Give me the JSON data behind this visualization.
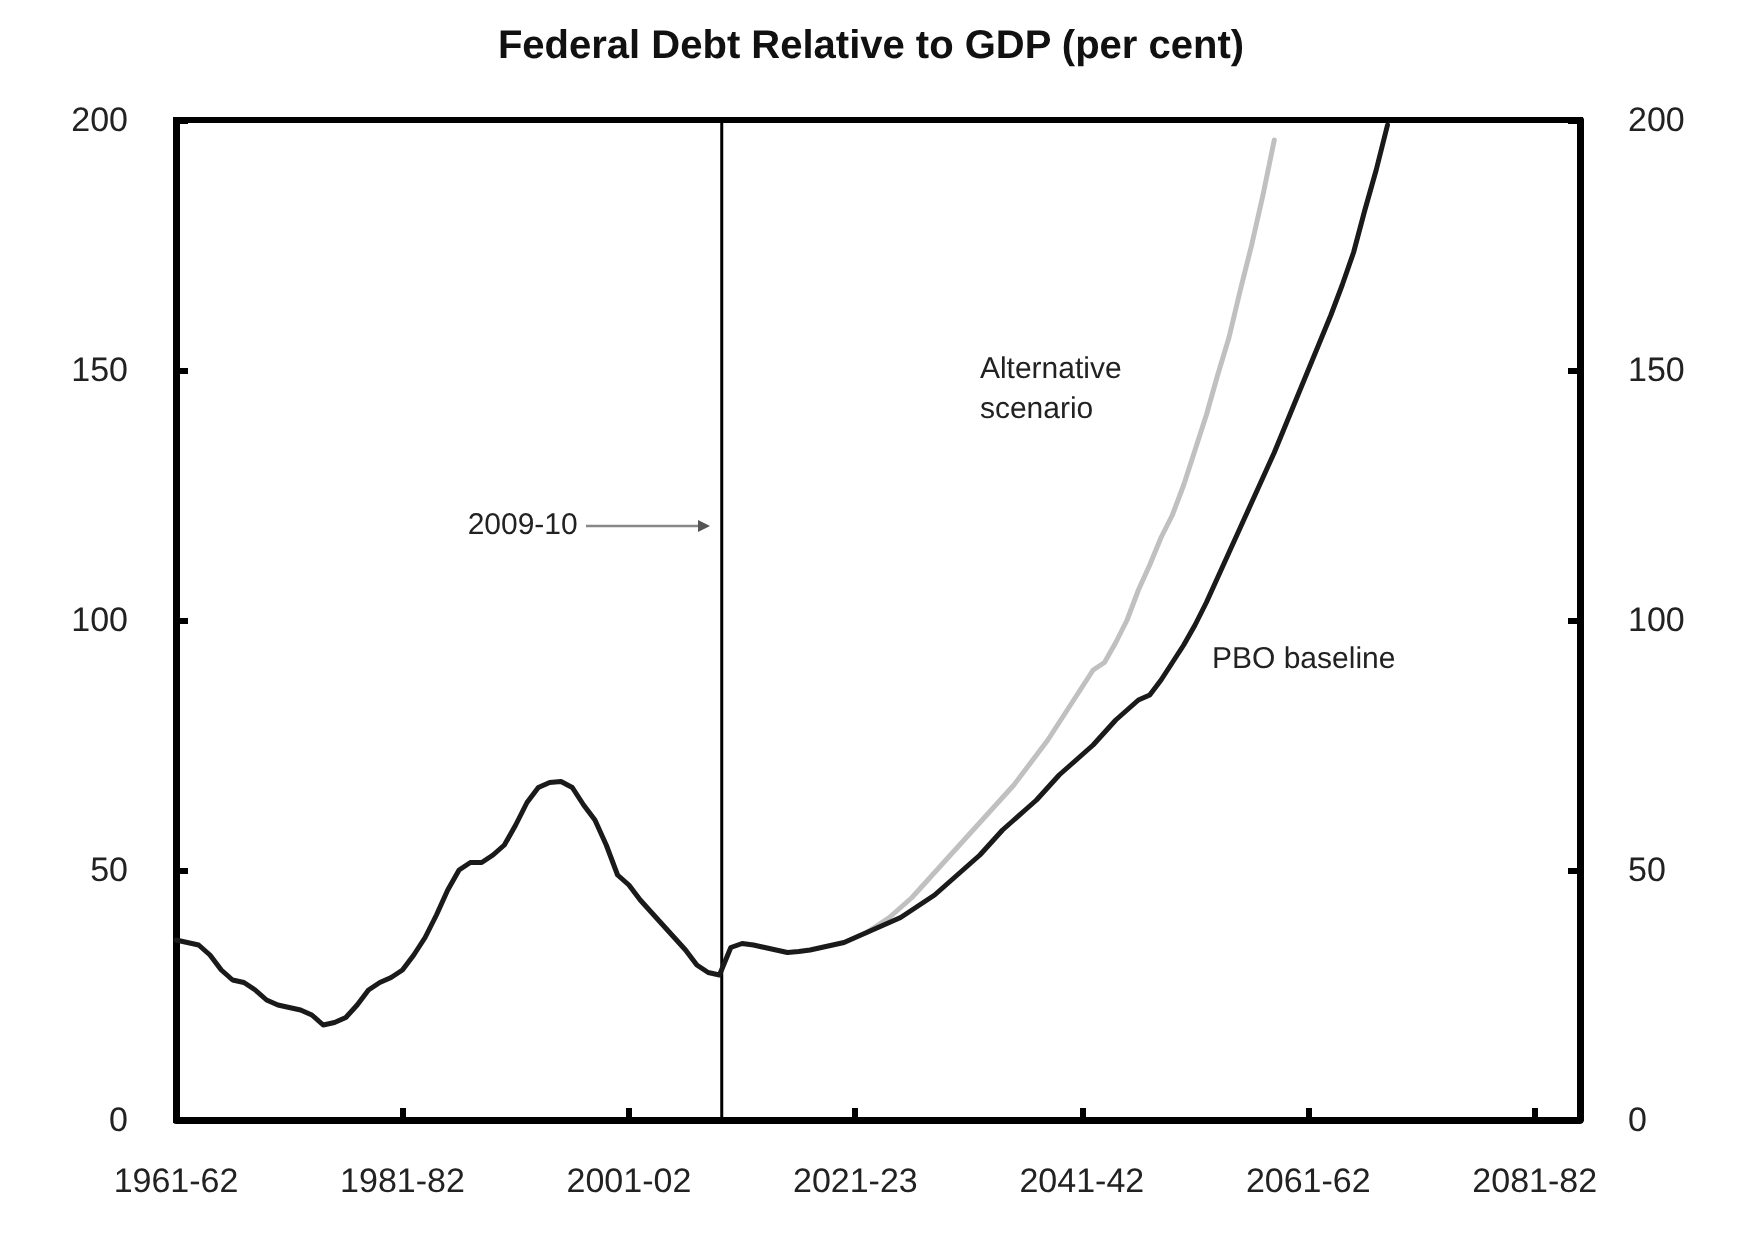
{
  "chart_data": {
    "type": "line",
    "title": "Federal Debt Relative to GDP (per cent)",
    "categories": [
      "1961-62",
      null,
      null,
      null,
      null,
      null,
      null,
      null,
      null,
      null,
      null,
      null,
      null,
      null,
      null,
      null,
      null,
      null,
      null,
      null,
      "1981-82",
      null,
      null,
      null,
      null,
      null,
      null,
      null,
      null,
      null,
      null,
      null,
      null,
      null,
      null,
      null,
      null,
      null,
      null,
      null,
      "2001-02",
      null,
      null,
      null,
      null,
      null,
      null,
      null,
      null,
      null,
      null,
      null,
      null,
      null,
      null,
      null,
      null,
      null,
      null,
      null,
      "2021-23",
      null,
      null,
      null,
      null,
      null,
      null,
      null,
      null,
      null,
      null,
      null,
      null,
      null,
      null,
      null,
      null,
      null,
      null,
      null,
      "2041-42",
      null,
      null,
      null,
      null,
      null,
      null,
      null,
      null,
      null,
      null,
      null,
      null,
      null,
      null,
      null,
      null,
      null,
      null,
      null,
      "2061-62",
      null,
      null,
      null,
      null,
      null,
      null,
      null,
      null,
      null,
      null,
      null,
      null,
      null,
      null,
      null,
      null,
      null,
      null,
      null,
      "2081-82",
      null,
      null,
      null,
      null
    ],
    "series": [
      {
        "name": "PBO baseline",
        "color": "#1a1a1a",
        "values": [
          36,
          35.5,
          35,
          33,
          30,
          28,
          27.5,
          26,
          24,
          23,
          22.5,
          22,
          21,
          19,
          19.5,
          20.5,
          23,
          26,
          27.5,
          28.5,
          30,
          33,
          36.5,
          41,
          46,
          50,
          51.5,
          51.5,
          53,
          55,
          59,
          63.5,
          66.5,
          67.5,
          67.7,
          66.5,
          63,
          60,
          55,
          49,
          47,
          44,
          41.5,
          39,
          36.5,
          34,
          31,
          29.5,
          29,
          34.5,
          35.3,
          35,
          34.5,
          34,
          33.5,
          33.7,
          34,
          34.5,
          35,
          35.5,
          36.5,
          37.5,
          38.5,
          39.5,
          40.5,
          42,
          43.5,
          45,
          47,
          49,
          51,
          53,
          55.5,
          58,
          60,
          62,
          64,
          66.5,
          69,
          71,
          73,
          75,
          77.5,
          80,
          82,
          84,
          85,
          88,
          91.5,
          95,
          99,
          103.5,
          108.5,
          113.5,
          118.5,
          123.5,
          128.5,
          133.5,
          139,
          144.5,
          150,
          155.5,
          161,
          167,
          173.5,
          182,
          190,
          199,
          null,
          null,
          null,
          null,
          null,
          null,
          null,
          null,
          null,
          null,
          null,
          null,
          null,
          null,
          null,
          null,
          null
        ]
      },
      {
        "name": "Alternative scenario",
        "color": "#c0c0c0",
        "values": [
          null,
          null,
          null,
          null,
          null,
          null,
          null,
          null,
          null,
          null,
          null,
          null,
          null,
          null,
          null,
          null,
          null,
          null,
          null,
          null,
          null,
          null,
          null,
          null,
          null,
          null,
          null,
          null,
          null,
          null,
          null,
          null,
          null,
          null,
          null,
          null,
          null,
          null,
          null,
          null,
          null,
          null,
          null,
          null,
          null,
          null,
          null,
          null,
          null,
          null,
          null,
          null,
          null,
          null,
          null,
          null,
          null,
          null,
          null,
          null,
          null,
          37.5,
          39,
          40.5,
          42.5,
          44.5,
          47,
          49.5,
          52,
          54.5,
          57,
          59.5,
          62,
          64.5,
          67,
          70,
          73,
          76,
          79.5,
          83,
          86.5,
          90,
          91.5,
          95.5,
          100,
          106,
          111,
          116.5,
          121,
          127,
          134,
          141,
          149,
          156.5,
          166,
          175,
          185,
          196,
          null,
          null,
          null,
          null,
          null,
          null,
          null,
          null,
          null,
          null,
          null,
          null,
          null,
          null,
          null,
          null,
          null,
          null,
          null,
          null,
          null,
          null,
          null,
          null,
          null,
          null,
          null
        ]
      }
    ],
    "ylim": [
      0,
      200
    ],
    "yticks": [
      0,
      50,
      100,
      150,
      200
    ],
    "y2lim": [
      0,
      200
    ],
    "y2ticks": [
      0,
      50,
      100,
      150,
      200
    ],
    "annotations": [
      "2009-10"
    ],
    "grid": false,
    "legend": false
  }
}
